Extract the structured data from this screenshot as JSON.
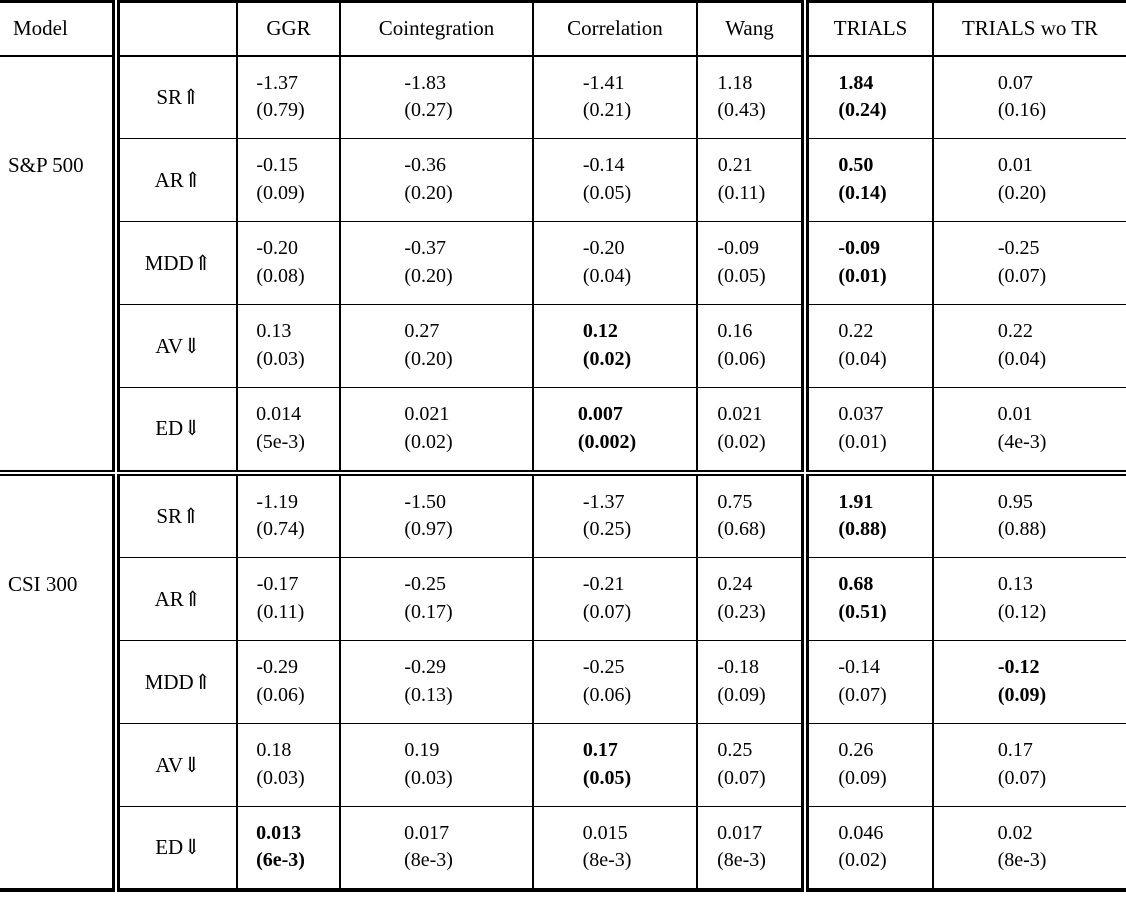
{
  "table": {
    "header": {
      "model_label": "Model",
      "columns": [
        "GGR",
        "Cointegration",
        "Correlation",
        "Wang",
        "TRIALS",
        "TRIALS wo TR"
      ]
    },
    "groups": [
      {
        "name": "S&P 500",
        "rows": [
          {
            "metric": "SR⇑",
            "cells": [
              {
                "value": "-1.37",
                "std": "(0.79)",
                "bold": false
              },
              {
                "value": "-1.83",
                "std": "(0.27)",
                "bold": false
              },
              {
                "value": "-1.41",
                "std": "(0.21)",
                "bold": false
              },
              {
                "value": "1.18",
                "std": "(0.43)",
                "bold": false
              },
              {
                "value": "1.84",
                "std": "(0.24)",
                "bold": true
              },
              {
                "value": "0.07",
                "std": "(0.16)",
                "bold": false
              }
            ]
          },
          {
            "metric": "AR⇑",
            "cells": [
              {
                "value": "-0.15",
                "std": "(0.09)",
                "bold": false
              },
              {
                "value": "-0.36",
                "std": "(0.20)",
                "bold": false
              },
              {
                "value": "-0.14",
                "std": "(0.05)",
                "bold": false
              },
              {
                "value": "0.21",
                "std": "(0.11)",
                "bold": false
              },
              {
                "value": "0.50",
                "std": "(0.14)",
                "bold": true
              },
              {
                "value": "0.01",
                "std": "(0.20)",
                "bold": false
              }
            ]
          },
          {
            "metric": "MDD⇑",
            "cells": [
              {
                "value": "-0.20",
                "std": "(0.08)",
                "bold": false
              },
              {
                "value": "-0.37",
                "std": "(0.20)",
                "bold": false
              },
              {
                "value": "-0.20",
                "std": "(0.04)",
                "bold": false
              },
              {
                "value": "-0.09",
                "std": "(0.05)",
                "bold": false
              },
              {
                "value": "-0.09",
                "std": "(0.01)",
                "bold": true
              },
              {
                "value": "-0.25",
                "std": "(0.07)",
                "bold": false
              }
            ]
          },
          {
            "metric": "AV⇓",
            "cells": [
              {
                "value": "0.13",
                "std": "(0.03)",
                "bold": false
              },
              {
                "value": "0.27",
                "std": "(0.20)",
                "bold": false
              },
              {
                "value": "0.12",
                "std": "(0.02)",
                "bold": true
              },
              {
                "value": "0.16",
                "std": "(0.06)",
                "bold": false
              },
              {
                "value": "0.22",
                "std": "(0.04)",
                "bold": false
              },
              {
                "value": "0.22",
                "std": "(0.04)",
                "bold": false
              }
            ]
          },
          {
            "metric": "ED⇓",
            "cells": [
              {
                "value": "0.014",
                "std": "(5e-3)",
                "bold": false
              },
              {
                "value": "0.021",
                "std": "(0.02)",
                "bold": false
              },
              {
                "value": "0.007",
                "std": "(0.002)",
                "bold": true
              },
              {
                "value": "0.021",
                "std": "(0.02)",
                "bold": false
              },
              {
                "value": "0.037",
                "std": "(0.01)",
                "bold": false
              },
              {
                "value": "0.01",
                "std": "(4e-3)",
                "bold": false
              }
            ]
          }
        ]
      },
      {
        "name": "CSI 300",
        "rows": [
          {
            "metric": "SR⇑",
            "cells": [
              {
                "value": "-1.19",
                "std": "(0.74)",
                "bold": false
              },
              {
                "value": "-1.50",
                "std": "(0.97)",
                "bold": false
              },
              {
                "value": "-1.37",
                "std": "(0.25)",
                "bold": false
              },
              {
                "value": "0.75",
                "std": "(0.68)",
                "bold": false
              },
              {
                "value": "1.91",
                "std": "(0.88)",
                "bold": true
              },
              {
                "value": "0.95",
                "std": "(0.88)",
                "bold": false
              }
            ]
          },
          {
            "metric": "AR⇑",
            "cells": [
              {
                "value": "-0.17",
                "std": "(0.11)",
                "bold": false
              },
              {
                "value": "-0.25",
                "std": "(0.17)",
                "bold": false
              },
              {
                "value": "-0.21",
                "std": "(0.07)",
                "bold": false
              },
              {
                "value": "0.24",
                "std": "(0.23)",
                "bold": false
              },
              {
                "value": "0.68",
                "std": "(0.51)",
                "bold": true
              },
              {
                "value": "0.13",
                "std": "(0.12)",
                "bold": false
              }
            ]
          },
          {
            "metric": "MDD⇑",
            "cells": [
              {
                "value": "-0.29",
                "std": "(0.06)",
                "bold": false
              },
              {
                "value": "-0.29",
                "std": "(0.13)",
                "bold": false
              },
              {
                "value": "-0.25",
                "std": "(0.06)",
                "bold": false
              },
              {
                "value": "-0.18",
                "std": "(0.09)",
                "bold": false
              },
              {
                "value": "-0.14",
                "std": "(0.07)",
                "bold": false
              },
              {
                "value": "-0.12",
                "std": "(0.09)",
                "bold": true
              }
            ]
          },
          {
            "metric": "AV⇓",
            "cells": [
              {
                "value": "0.18",
                "std": "(0.03)",
                "bold": false
              },
              {
                "value": "0.19",
                "std": "(0.03)",
                "bold": false
              },
              {
                "value": "0.17",
                "std": "(0.05)",
                "bold": true
              },
              {
                "value": "0.25",
                "std": "(0.07)",
                "bold": false
              },
              {
                "value": "0.26",
                "std": "(0.09)",
                "bold": false
              },
              {
                "value": "0.17",
                "std": "(0.07)",
                "bold": false
              }
            ]
          },
          {
            "metric": "ED⇓",
            "cells": [
              {
                "value": "0.013",
                "std": "(6e-3)",
                "bold": true
              },
              {
                "value": "0.017",
                "std": "(8e-3)",
                "bold": false
              },
              {
                "value": "0.015",
                "std": "(8e-3)",
                "bold": false
              },
              {
                "value": "0.017",
                "std": "(8e-3)",
                "bold": false
              },
              {
                "value": "0.046",
                "std": "(0.02)",
                "bold": false
              },
              {
                "value": "0.02",
                "std": "(8e-3)",
                "bold": false
              }
            ]
          }
        ]
      }
    ]
  }
}
